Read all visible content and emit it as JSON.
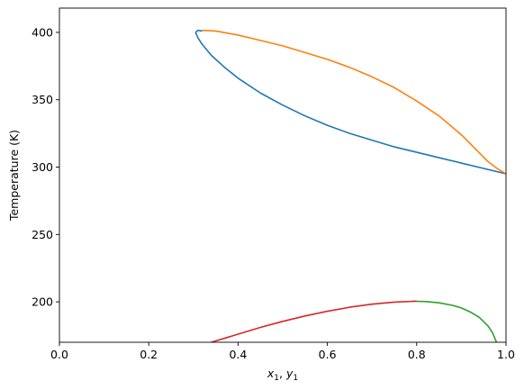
{
  "chart_data": {
    "type": "line",
    "xlabel_main": "x",
    "xlabel_sub1": "1",
    "xlabel_sep": ", ",
    "xlabel_main2": "y",
    "xlabel_sub2": "1",
    "ylabel": "Temperature (K)",
    "xlim": [
      0.0,
      1.0
    ],
    "ylim": [
      170,
      418
    ],
    "xticks": [
      0.0,
      0.2,
      0.4,
      0.6,
      0.8,
      1.0
    ],
    "xtick_labels": [
      "0.0",
      "0.2",
      "0.4",
      "0.6",
      "0.8",
      "1.0"
    ],
    "yticks": [
      200,
      250,
      300,
      350,
      400
    ],
    "ytick_labels": [
      "200",
      "250",
      "300",
      "350",
      "400"
    ],
    "grid": false,
    "legend": "none",
    "series": [
      {
        "color": "#1f77b4",
        "x": [
          1.0,
          0.95,
          0.9,
          0.85,
          0.8,
          0.75,
          0.7,
          0.65,
          0.6,
          0.55,
          0.5,
          0.45,
          0.4,
          0.37,
          0.34,
          0.32,
          0.31,
          0.305,
          0.31,
          0.32
        ],
        "y": [
          295,
          299,
          303,
          307,
          311,
          315,
          320,
          325,
          331,
          338,
          346,
          355,
          366,
          374,
          383,
          391,
          396,
          400,
          401.5,
          401
        ]
      },
      {
        "color": "#ff7f0e",
        "x": [
          0.32,
          0.35,
          0.4,
          0.45,
          0.5,
          0.55,
          0.6,
          0.65,
          0.7,
          0.75,
          0.8,
          0.85,
          0.9,
          0.93,
          0.96,
          0.98,
          1.0
        ],
        "y": [
          401.5,
          401,
          398,
          394,
          390,
          385,
          380,
          374,
          367,
          359,
          349,
          338,
          324,
          314,
          304,
          299,
          295
        ]
      },
      {
        "color": "#2ca02c",
        "x": [
          0.79,
          0.82,
          0.85,
          0.88,
          0.9,
          0.92,
          0.94,
          0.96,
          0.97,
          0.98
        ],
        "y": [
          200.5,
          200.2,
          199.3,
          197.4,
          195.5,
          192.5,
          188.5,
          182,
          177,
          169
        ]
      },
      {
        "color": "#d62728",
        "x": [
          0.34,
          0.4,
          0.45,
          0.5,
          0.55,
          0.6,
          0.65,
          0.7,
          0.75,
          0.8
        ],
        "y": [
          170,
          176,
          181,
          185.5,
          189.5,
          193,
          196,
          198.3,
          199.8,
          200.5
        ]
      }
    ]
  }
}
